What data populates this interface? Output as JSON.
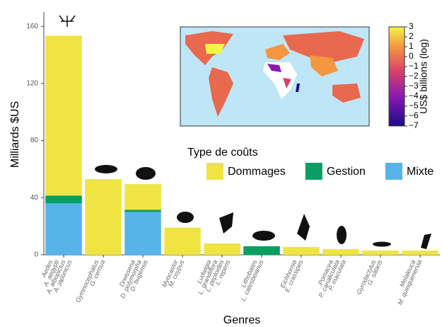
{
  "chart_data": {
    "type": "bar",
    "stacked": true,
    "xlabel": "Genres",
    "ylabel": "Milliards $US",
    "categories": [
      [
        "Aedes",
        "A. aegypti",
        "A. albopictus",
        "A. japonicus"
      ],
      [
        "Gymnocephalus",
        "G. cernua"
      ],
      [
        "Dreissena",
        "D. polymorpha",
        "D. bugensis"
      ],
      [
        "Myocastor",
        "M. coypus"
      ],
      [
        "Ludwigia",
        "L. grandiflora",
        "L. peploides",
        "L. repens"
      ],
      [
        "Lithobates",
        "L. catesbeianus"
      ],
      [
        "Eichhornia",
        "E. crassipes"
      ],
      [
        "Pomacea",
        "P. canaliculata",
        "P. maculata"
      ],
      [
        "Gyrodactylus",
        "G. salaris"
      ],
      [
        "Melaleuca",
        "M. quinquenervia"
      ]
    ],
    "series": [
      {
        "name": "Mixte",
        "color": "#56b4e9",
        "values": [
          36,
          null,
          30,
          null,
          null,
          null,
          null,
          null,
          null,
          null
        ]
      },
      {
        "name": "Gestion",
        "color": "#0a9e62",
        "values": [
          5.5,
          null,
          1.5,
          null,
          null,
          6,
          null,
          null,
          null,
          null
        ]
      },
      {
        "name": "Dommages",
        "color": "#f0e442",
        "values": [
          112,
          53,
          18,
          19,
          8,
          null,
          5.5,
          4,
          3,
          3
        ]
      }
    ],
    "legend_title": "Type de coûts",
    "legend_order": [
      2,
      1,
      0
    ],
    "ylim": [
      0,
      170
    ],
    "yticks": [
      0,
      40,
      80,
      120,
      160
    ],
    "colorbar": {
      "label": "US$ billions (log)",
      "lim": [
        -7,
        3
      ],
      "ticks": [
        3,
        2,
        1,
        0,
        {
          "value": -1,
          "label": "−1"
        },
        {
          "value": -2,
          "label": "−2"
        },
        {
          "value": -3,
          "label": "−3"
        },
        {
          "value": -4,
          "label": "−4"
        },
        {
          "value": -5,
          "label": "−5"
        },
        {
          "value": -6,
          "label": "−6"
        },
        {
          "value": -7,
          "label": "−7"
        }
      ]
    }
  }
}
